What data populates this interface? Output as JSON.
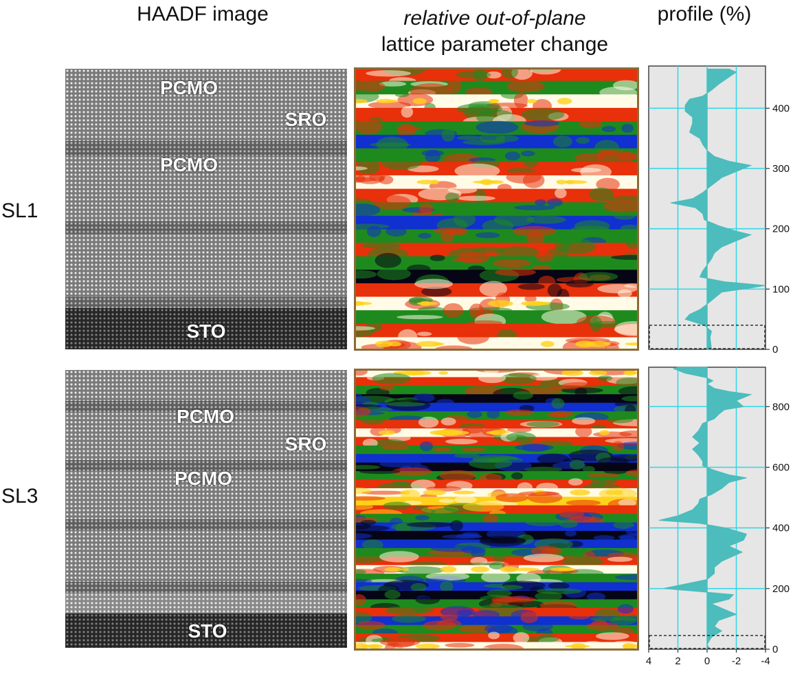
{
  "headers": {
    "col1": "HAADF image",
    "col2_italic": "relative out-of-plane",
    "col2_line2": "lattice parameter change",
    "col3": "profile (%)"
  },
  "rows": [
    {
      "label": "SL1",
      "haadf_labels": [
        "PCMO",
        "SRO",
        "PCMO",
        "STO"
      ],
      "y_ticks": [
        "0",
        "100",
        "200",
        "300",
        "400"
      ],
      "profile_y_max": 470,
      "bands": [
        "red",
        "green",
        "white",
        "red",
        "green",
        "blue",
        "green",
        "red",
        "white",
        "red",
        "green",
        "blue",
        "green",
        "red",
        "green",
        "black",
        "red",
        "white",
        "green",
        "red",
        "white"
      ],
      "profile_points": [
        [
          0,
          -0.3
        ],
        [
          20,
          -0.2
        ],
        [
          30,
          -0.3
        ],
        [
          40,
          0.2
        ],
        [
          50,
          1.5
        ],
        [
          58,
          1.2
        ],
        [
          66,
          0.5
        ],
        [
          75,
          0
        ],
        [
          85,
          -0.5
        ],
        [
          95,
          -1
        ],
        [
          102,
          -3
        ],
        [
          106,
          -4
        ],
        [
          112,
          -1.2
        ],
        [
          120,
          0.5
        ],
        [
          130,
          0.3
        ],
        [
          140,
          0
        ],
        [
          150,
          -0.3
        ],
        [
          160,
          -0.5
        ],
        [
          170,
          -1
        ],
        [
          180,
          -2
        ],
        [
          190,
          -3
        ],
        [
          196,
          -2
        ],
        [
          205,
          -0.8
        ],
        [
          215,
          0.2
        ],
        [
          225,
          0.3
        ],
        [
          235,
          0.8
        ],
        [
          243,
          2.5
        ],
        [
          250,
          1
        ],
        [
          260,
          0.3
        ],
        [
          270,
          -0.2
        ],
        [
          285,
          -1
        ],
        [
          295,
          -2
        ],
        [
          305,
          -3
        ],
        [
          312,
          -1.5
        ],
        [
          320,
          -0.5
        ],
        [
          330,
          0
        ],
        [
          340,
          0.3
        ],
        [
          350,
          0.5
        ],
        [
          360,
          1.2
        ],
        [
          375,
          1
        ],
        [
          385,
          1
        ],
        [
          395,
          1.5
        ],
        [
          405,
          1.5
        ],
        [
          415,
          1.2
        ],
        [
          420,
          0.3
        ],
        [
          430,
          -0.3
        ],
        [
          440,
          -0.8
        ],
        [
          450,
          -1.4
        ],
        [
          460,
          -2
        ],
        [
          465,
          -1.5
        ]
      ]
    },
    {
      "label": "SL3",
      "haadf_labels": [
        "PCMO",
        "SRO",
        "PCMO",
        "STO"
      ],
      "y_ticks": [
        "0",
        "200",
        "400",
        "600",
        "800"
      ],
      "profile_y_max": 930,
      "bands": [
        "white",
        "red",
        "green",
        "black",
        "blue",
        "green",
        "red",
        "white",
        "red",
        "green",
        "blue",
        "black",
        "green",
        "red",
        "white",
        "yellow",
        "red",
        "green",
        "blue",
        "black",
        "blue",
        "green",
        "red",
        "white",
        "green",
        "blue",
        "black",
        "green",
        "red",
        "blue",
        "green",
        "red",
        "white"
      ],
      "profile_points": [
        [
          0,
          -0.2
        ],
        [
          15,
          0
        ],
        [
          40,
          -0.3
        ],
        [
          60,
          -1
        ],
        [
          75,
          -0.5
        ],
        [
          95,
          -0.8
        ],
        [
          115,
          -2
        ],
        [
          135,
          -1
        ],
        [
          150,
          -0.3
        ],
        [
          165,
          -1.5
        ],
        [
          180,
          -1.8
        ],
        [
          190,
          0.5
        ],
        [
          200,
          3
        ],
        [
          215,
          1.5
        ],
        [
          230,
          0
        ],
        [
          250,
          -0.5
        ],
        [
          270,
          -0.5
        ],
        [
          290,
          -1
        ],
        [
          320,
          -2.4
        ],
        [
          340,
          -1.5
        ],
        [
          360,
          -2.5
        ],
        [
          380,
          -2.7
        ],
        [
          400,
          -1.3
        ],
        [
          415,
          0.5
        ],
        [
          425,
          3.3
        ],
        [
          440,
          2
        ],
        [
          460,
          1
        ],
        [
          480,
          0.6
        ],
        [
          495,
          0.5
        ],
        [
          510,
          -0.3
        ],
        [
          530,
          -1
        ],
        [
          550,
          -1.5
        ],
        [
          565,
          -2.7
        ],
        [
          575,
          -1.5
        ],
        [
          590,
          -0.5
        ],
        [
          605,
          0.3
        ],
        [
          620,
          0.3
        ],
        [
          640,
          0.6
        ],
        [
          660,
          1
        ],
        [
          680,
          0.5
        ],
        [
          700,
          1
        ],
        [
          720,
          0.6
        ],
        [
          745,
          0.3
        ],
        [
          760,
          -0.5
        ],
        [
          775,
          -0.8
        ],
        [
          790,
          -1.2
        ],
        [
          800,
          -2.5
        ],
        [
          820,
          -2
        ],
        [
          840,
          -3
        ],
        [
          850,
          -1.5
        ],
        [
          860,
          -0.5
        ],
        [
          875,
          0
        ],
        [
          885,
          -0.4
        ],
        [
          895,
          0
        ],
        [
          910,
          1.5
        ],
        [
          925,
          2.3
        ],
        [
          930,
          2
        ]
      ]
    }
  ],
  "x_ticks": [
    "4",
    "2",
    "0",
    "-2",
    "-4"
  ],
  "colors": {
    "profile_fill": "#4cbcbc",
    "profile_bg": "#e6e6e6",
    "grid": "#2ed6e6",
    "map_border": "#8a6a3a"
  }
}
